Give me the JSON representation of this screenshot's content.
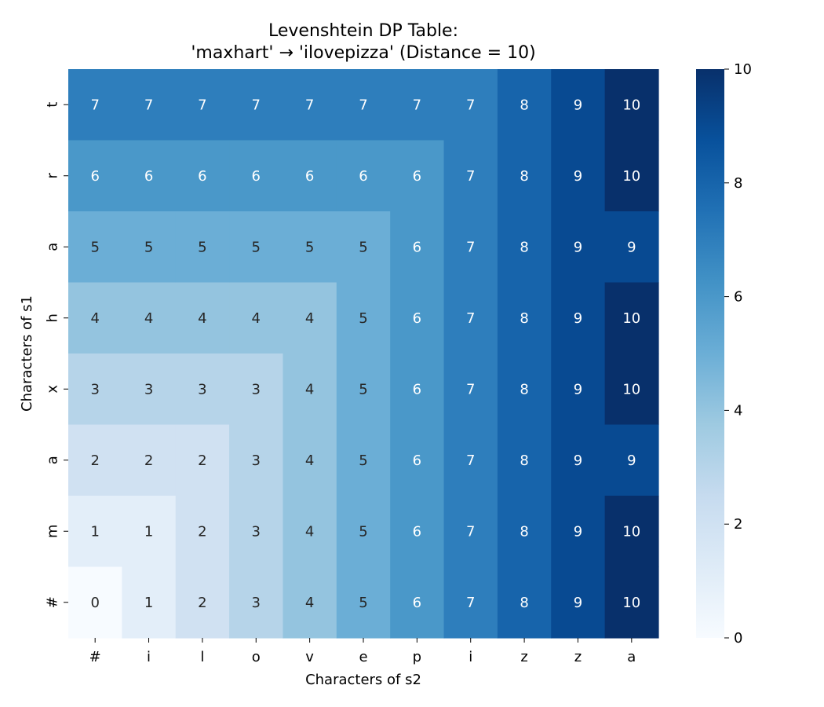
{
  "chart_data": {
    "type": "heatmap",
    "title_line1": "Levenshtein DP Table:",
    "title_line2": "'maxhart' → 'ilovepizza' (Distance = 10)",
    "xlabel": "Characters of s2",
    "ylabel": "Characters of s1",
    "x_categories": [
      "#",
      "i",
      "l",
      "o",
      "v",
      "e",
      "p",
      "i",
      "z",
      "z",
      "a"
    ],
    "y_categories": [
      "t",
      "r",
      "a",
      "h",
      "x",
      "a",
      "m",
      "#"
    ],
    "values": [
      [
        7,
        7,
        7,
        7,
        7,
        7,
        7,
        7,
        8,
        9,
        10
      ],
      [
        6,
        6,
        6,
        6,
        6,
        6,
        6,
        7,
        8,
        9,
        10
      ],
      [
        5,
        5,
        5,
        5,
        5,
        5,
        6,
        7,
        8,
        9,
        9
      ],
      [
        4,
        4,
        4,
        4,
        4,
        5,
        6,
        7,
        8,
        9,
        10
      ],
      [
        3,
        3,
        3,
        3,
        4,
        5,
        6,
        7,
        8,
        9,
        10
      ],
      [
        2,
        2,
        2,
        3,
        4,
        5,
        6,
        7,
        8,
        9,
        9
      ],
      [
        1,
        1,
        2,
        3,
        4,
        5,
        6,
        7,
        8,
        9,
        10
      ],
      [
        0,
        1,
        2,
        3,
        4,
        5,
        6,
        7,
        8,
        9,
        10
      ]
    ],
    "colormap": "Blues",
    "vmin": 0,
    "vmax": 10,
    "colorbar_ticks": [
      "0",
      "2",
      "4",
      "6",
      "8",
      "10"
    ],
    "annotated": true
  }
}
